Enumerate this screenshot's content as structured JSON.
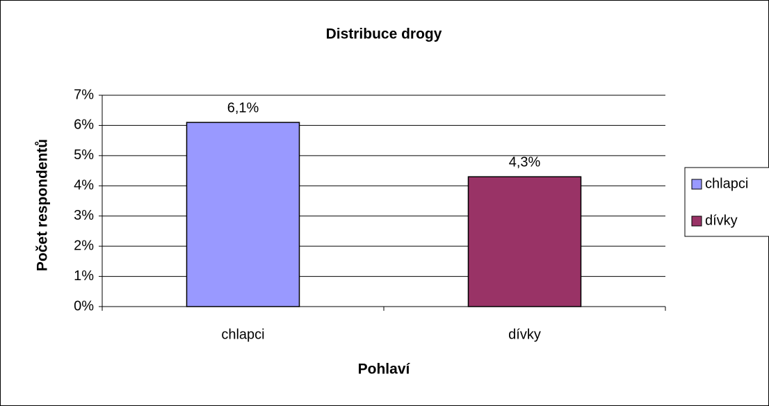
{
  "chart_data": {
    "type": "bar",
    "title": "Distribuce drogy",
    "x_label": "Pohlaví",
    "y_label": "Počet respondentů",
    "categories": [
      "chlapci",
      "dívky"
    ],
    "values": [
      6.1,
      4.3
    ],
    "value_labels": [
      "6,1%",
      "4,3%"
    ],
    "colors": [
      "#9999ff",
      "#993366"
    ],
    "ylim": [
      0,
      7
    ],
    "yticks": [
      {
        "value": 0,
        "label": "0%"
      },
      {
        "value": 1,
        "label": "1%"
      },
      {
        "value": 2,
        "label": "2%"
      },
      {
        "value": 3,
        "label": "3%"
      },
      {
        "value": 4,
        "label": "4%"
      },
      {
        "value": 5,
        "label": "5%"
      },
      {
        "value": 6,
        "label": "6%"
      },
      {
        "value": 7,
        "label": "7%"
      }
    ],
    "grid": true,
    "legend": "right"
  }
}
